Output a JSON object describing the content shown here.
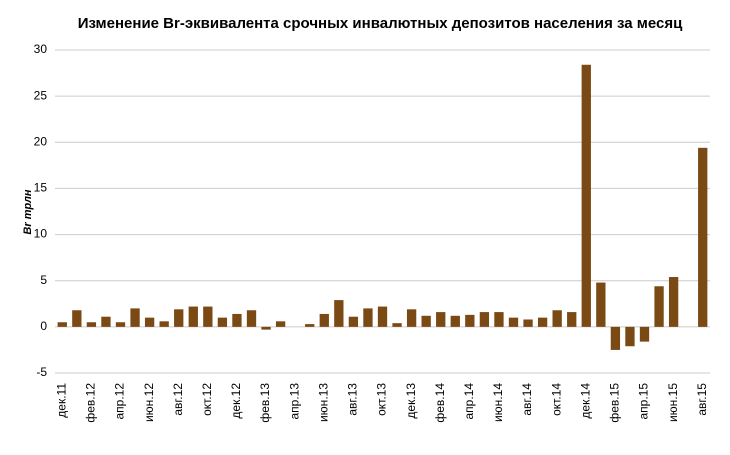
{
  "chart_data": {
    "type": "bar",
    "title": "Изменение Br-эквивалента срочных инвалютных депозитов населения за месяц",
    "y_label": "Br трлн",
    "categories": [
      "дек.11",
      null,
      "фев.12",
      null,
      "апр.12",
      null,
      "июн.12",
      null,
      "авг.12",
      null,
      "окт.12",
      null,
      "дек.12",
      null,
      "фев.13",
      null,
      "апр.13",
      null,
      "июн.13",
      null,
      "авг.13",
      null,
      "окт.13",
      null,
      "дек.13",
      null,
      "фев.14",
      null,
      "апр.14",
      null,
      "июн.14",
      null,
      "авг.14",
      null,
      "окт.14",
      null,
      "дек.14",
      null,
      "фев.15",
      null,
      "апр.15",
      null,
      "июн.15",
      null,
      "авг.15"
    ],
    "values": [
      0.5,
      1.8,
      0.5,
      1.1,
      0.5,
      2.0,
      1.0,
      0.6,
      1.9,
      2.2,
      2.2,
      1.0,
      1.4,
      1.8,
      -0.3,
      0.6,
      0.0,
      0.3,
      1.4,
      2.9,
      1.1,
      2.0,
      2.2,
      0.4,
      1.9,
      1.2,
      1.6,
      1.2,
      1.3,
      1.6,
      1.6,
      1.0,
      0.8,
      1.0,
      1.8,
      1.6,
      28.4,
      4.8,
      -2.5,
      -2.1,
      -1.6,
      4.4,
      5.4,
      0.0,
      19.4
    ],
    "color": "#7b4a14",
    "ylim": [
      -5,
      30
    ],
    "yticks": [
      -5,
      0,
      5,
      10,
      15,
      20,
      25,
      30
    ],
    "grid": true
  }
}
